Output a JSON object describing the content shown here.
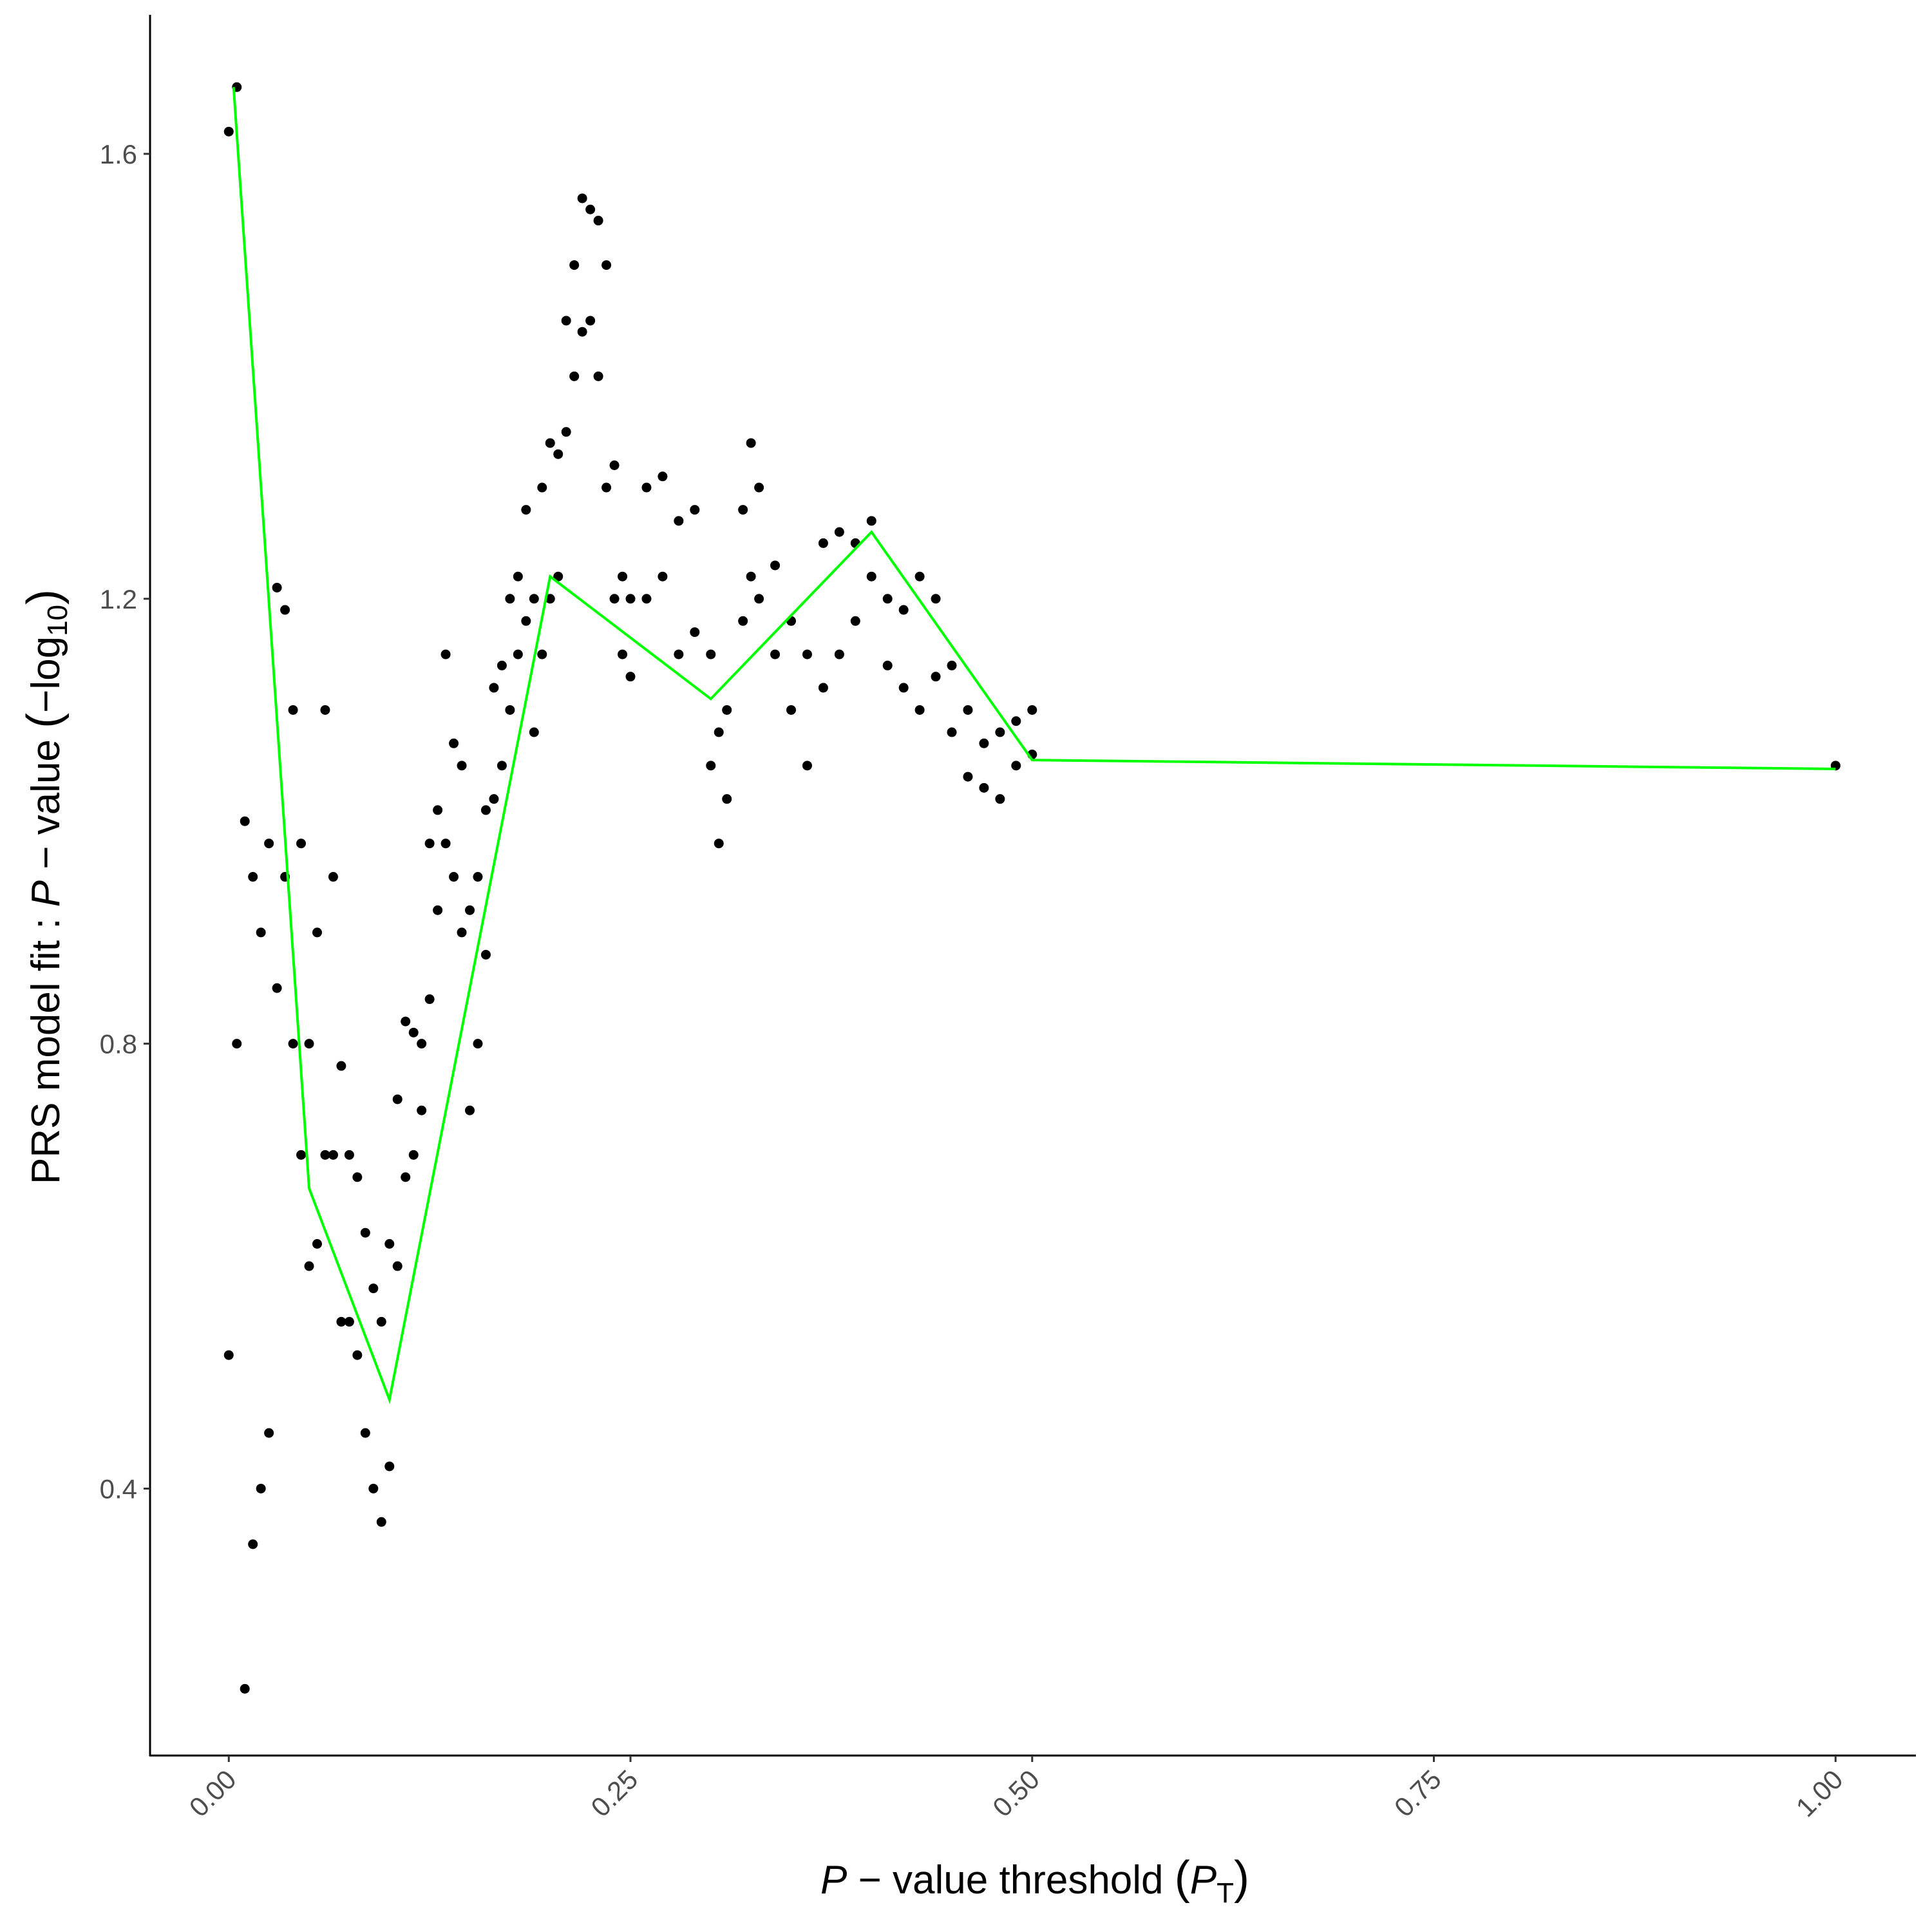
{
  "chart_data": {
    "type": "scatter",
    "xlabel": [
      "P",
      " − value threshold ",
      "(",
      "P",
      "T",
      ")"
    ],
    "ylabel": [
      "PRS model fit : ",
      "P",
      " − value ",
      "(",
      "−log",
      "10",
      ")"
    ],
    "xlim": [
      -0.049,
      1.05
    ],
    "ylim": [
      0.16,
      1.725
    ],
    "xticks": [
      {
        "value": 0,
        "label": "0.00"
      },
      {
        "value": 0.25,
        "label": "0.25"
      },
      {
        "value": 0.5,
        "label": "0.50"
      },
      {
        "value": 0.75,
        "label": "0.75"
      },
      {
        "value": 1,
        "label": "1.00"
      }
    ],
    "yticks": [
      0.4,
      0.8,
      1.2,
      1.6
    ],
    "grid": false,
    "series": [
      {
        "type": "scatter",
        "color": "#000000",
        "x": [
          0,
          0,
          0.005,
          0.005,
          0.01,
          0.01,
          0.015,
          0.015,
          0.02,
          0.02,
          0.025,
          0.025,
          0.03,
          0.03,
          0.035,
          0.035,
          0.04,
          0.04,
          0.045,
          0.045,
          0.05,
          0.05,
          0.055,
          0.055,
          0.06,
          0.06,
          0.065,
          0.065,
          0.07,
          0.07,
          0.075,
          0.075,
          0.08,
          0.08,
          0.085,
          0.085,
          0.09,
          0.09,
          0.095,
          0.095,
          0.1,
          0.1,
          0.105,
          0.105,
          0.11,
          0.11,
          0.115,
          0.115,
          0.12,
          0.12,
          0.125,
          0.125,
          0.13,
          0.13,
          0.135,
          0.135,
          0.14,
          0.14,
          0.145,
          0.145,
          0.15,
          0.15,
          0.155,
          0.155,
          0.16,
          0.16,
          0.165,
          0.165,
          0.17,
          0.17,
          0.175,
          0.175,
          0.18,
          0.18,
          0.185,
          0.185,
          0.19,
          0.19,
          0.195,
          0.195,
          0.2,
          0.2,
          0.205,
          0.205,
          0.21,
          0.21,
          0.215,
          0.215,
          0.22,
          0.22,
          0.225,
          0.225,
          0.23,
          0.23,
          0.235,
          0.235,
          0.24,
          0.24,
          0.245,
          0.245,
          0.25,
          0.25,
          0.26,
          0.26,
          0.27,
          0.27,
          0.28,
          0.28,
          0.29,
          0.29,
          0.3,
          0.3,
          0.305,
          0.305,
          0.31,
          0.31,
          0.32,
          0.32,
          0.325,
          0.325,
          0.33,
          0.33,
          0.34,
          0.34,
          0.35,
          0.35,
          0.36,
          0.36,
          0.37,
          0.37,
          0.38,
          0.38,
          0.39,
          0.39,
          0.4,
          0.4,
          0.41,
          0.41,
          0.42,
          0.42,
          0.43,
          0.43,
          0.44,
          0.44,
          0.45,
          0.45,
          0.46,
          0.46,
          0.47,
          0.47,
          0.48,
          0.48,
          0.49,
          0.49,
          0.5,
          0.5,
          1
        ],
        "values": [
          0.52,
          1.62,
          0.8,
          1.66,
          0.22,
          1.0,
          0.35,
          0.95,
          0.4,
          0.9,
          0.45,
          0.98,
          0.85,
          1.21,
          0.95,
          1.19,
          0.8,
          1.1,
          0.7,
          0.98,
          0.6,
          0.8,
          0.62,
          0.9,
          0.7,
          1.1,
          0.7,
          0.95,
          0.55,
          0.78,
          0.55,
          0.7,
          0.52,
          0.68,
          0.45,
          0.63,
          0.4,
          0.58,
          0.37,
          0.55,
          0.42,
          0.62,
          0.6,
          0.75,
          0.68,
          0.82,
          0.7,
          0.81,
          0.74,
          0.8,
          0.84,
          0.98,
          0.92,
          1.01,
          0.98,
          1.15,
          0.95,
          1.07,
          0.9,
          1.05,
          0.74,
          0.92,
          0.8,
          0.95,
          0.88,
          1.01,
          1.02,
          1.12,
          1.05,
          1.14,
          1.1,
          1.2,
          1.15,
          1.22,
          1.18,
          1.28,
          1.08,
          1.2,
          1.15,
          1.3,
          1.2,
          1.34,
          1.22,
          1.33,
          1.35,
          1.45,
          1.4,
          1.5,
          1.44,
          1.56,
          1.45,
          1.55,
          1.4,
          1.54,
          1.3,
          1.5,
          1.2,
          1.32,
          1.15,
          1.22,
          1.13,
          1.2,
          1.2,
          1.3,
          1.22,
          1.31,
          1.15,
          1.27,
          1.17,
          1.28,
          1.05,
          1.15,
          0.98,
          1.08,
          1.02,
          1.1,
          1.18,
          1.28,
          1.22,
          1.34,
          1.2,
          1.3,
          1.15,
          1.23,
          1.1,
          1.18,
          1.05,
          1.15,
          1.12,
          1.25,
          1.15,
          1.26,
          1.18,
          1.25,
          1.22,
          1.27,
          1.14,
          1.2,
          1.12,
          1.19,
          1.1,
          1.22,
          1.13,
          1.2,
          1.08,
          1.14,
          1.04,
          1.1,
          1.03,
          1.07,
          1.02,
          1.08,
          1.05,
          1.09,
          1.06,
          1.1,
          1.05
        ]
      },
      {
        "type": "line",
        "color": "#00ff00",
        "x": [
          0.003,
          0.05,
          0.1,
          0.2,
          0.3,
          0.4,
          0.5,
          1
        ],
        "values": [
          1.66,
          0.67,
          0.48,
          1.22,
          1.11,
          1.26,
          1.055,
          1.047
        ]
      }
    ]
  }
}
